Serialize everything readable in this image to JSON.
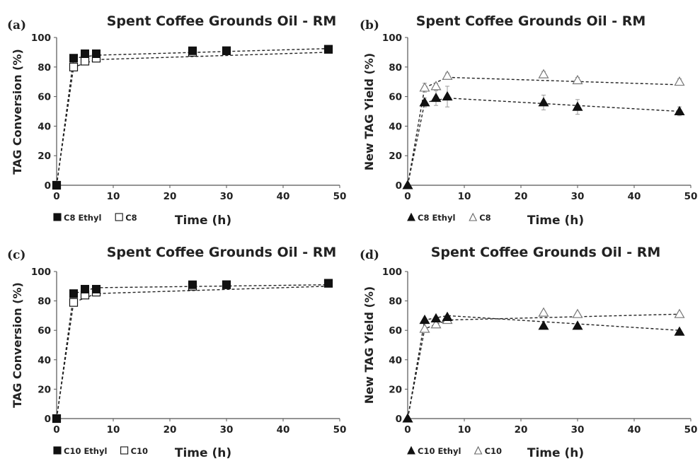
{
  "chart_data": [
    {
      "panel": "(a)",
      "type": "line",
      "title": "Spent Coffee Grounds Oil - RM",
      "xlabel": "Time (h)",
      "ylabel": "TAG Conversion (%)",
      "xlim": [
        0,
        50
      ],
      "ylim": [
        0,
        100
      ],
      "xticks": [
        "0",
        "10",
        "20",
        "30",
        "40",
        "50"
      ],
      "yticks": [
        "0",
        "20",
        "40",
        "60",
        "80",
        "100"
      ],
      "grid": false,
      "legend_position": "bottom-left",
      "series": [
        {
          "name": "C8 Ethyl",
          "marker": "square-filled",
          "x": [
            0,
            3,
            5,
            7,
            24,
            30,
            48
          ],
          "y": [
            0,
            86,
            89,
            89,
            91,
            91,
            92
          ]
        },
        {
          "name": "C8",
          "marker": "square-open",
          "x": [
            0,
            3,
            5,
            7,
            24,
            30,
            48
          ],
          "y": [
            0,
            80,
            84,
            86,
            90,
            91,
            92
          ]
        }
      ],
      "trendlines": [
        {
          "series": "C8 Ethyl",
          "points": [
            [
              0,
              0
            ],
            [
              3,
              86
            ],
            [
              7,
              88
            ],
            [
              48,
              92.5
            ]
          ]
        },
        {
          "series": "C8",
          "points": [
            [
              0,
              0
            ],
            [
              3,
              80
            ],
            [
              7,
              85
            ],
            [
              48,
              90
            ]
          ]
        }
      ]
    },
    {
      "panel": "(b)",
      "type": "line",
      "title": "Spent Coffee Grounds Oil - RM",
      "xlabel": "Time (h)",
      "ylabel": "New TAG Yield (%)",
      "xlim": [
        0,
        50
      ],
      "ylim": [
        0,
        100
      ],
      "xticks": [
        "0",
        "10",
        "20",
        "30",
        "40",
        "50"
      ],
      "yticks": [
        "0",
        "20",
        "40",
        "60",
        "80",
        "100"
      ],
      "grid": false,
      "legend_position": "bottom-left",
      "series": [
        {
          "name": "C8 Ethyl",
          "marker": "triangle-filled",
          "x": [
            0,
            3,
            5,
            7,
            24,
            30,
            48
          ],
          "y": [
            0,
            56,
            59,
            60,
            56,
            53,
            50
          ],
          "err": [
            0,
            3,
            5,
            7,
            5,
            5,
            3
          ]
        },
        {
          "name": "C8",
          "marker": "triangle-open",
          "x": [
            0,
            3,
            5,
            7,
            24,
            30,
            48
          ],
          "y": [
            0,
            66,
            67,
            74,
            75,
            71,
            70
          ],
          "err": [
            0,
            3,
            2,
            2,
            2,
            2,
            2
          ]
        }
      ],
      "trendlines": [
        {
          "series": "C8 Ethyl",
          "points": [
            [
              0,
              0
            ],
            [
              3,
              56
            ],
            [
              7,
              59
            ],
            [
              48,
              50
            ]
          ]
        },
        {
          "series": "C8",
          "points": [
            [
              0,
              0
            ],
            [
              3,
              66
            ],
            [
              7,
              73
            ],
            [
              48,
              68
            ]
          ]
        }
      ]
    },
    {
      "panel": "(c)",
      "type": "line",
      "title": "Spent Coffee Grounds Oil - RM",
      "xlabel": "Time (h)",
      "ylabel": "TAG Conversion (%)",
      "xlim": [
        0,
        50
      ],
      "ylim": [
        0,
        100
      ],
      "xticks": [
        "0",
        "10",
        "20",
        "30",
        "40",
        "50"
      ],
      "yticks": [
        "0",
        "20",
        "40",
        "60",
        "80",
        "100"
      ],
      "grid": false,
      "legend_position": "bottom-left",
      "series": [
        {
          "name": "C10 Ethyl",
          "marker": "square-filled",
          "x": [
            0,
            3,
            5,
            7,
            24,
            30,
            48
          ],
          "y": [
            0,
            85,
            88,
            88,
            91,
            91,
            92
          ]
        },
        {
          "name": "C10",
          "marker": "square-open",
          "x": [
            0,
            3,
            5,
            7,
            24,
            30,
            48
          ],
          "y": [
            0,
            79,
            84,
            86,
            90,
            91,
            92
          ]
        }
      ],
      "trendlines": [
        {
          "series": "C10 Ethyl",
          "points": [
            [
              0,
              0
            ],
            [
              3,
              85
            ],
            [
              7,
              89
            ],
            [
              48,
              91
            ]
          ]
        },
        {
          "series": "C10",
          "points": [
            [
              0,
              0
            ],
            [
              3,
              79
            ],
            [
              7,
              85
            ],
            [
              48,
              90
            ]
          ]
        }
      ]
    },
    {
      "panel": "(d)",
      "type": "line",
      "title": "Spent Coffee Grounds Oil - RM",
      "xlabel": "Time (h)",
      "ylabel": "New TAG Yield (%)",
      "xlim": [
        0,
        50
      ],
      "ylim": [
        0,
        100
      ],
      "xticks": [
        "0",
        "10",
        "20",
        "30",
        "40",
        "50"
      ],
      "yticks": [
        "0",
        "20",
        "40",
        "60",
        "80",
        "100"
      ],
      "grid": false,
      "legend_position": "bottom-left",
      "series": [
        {
          "name": "C10 Ethyl",
          "marker": "triangle-filled",
          "x": [
            0,
            3,
            5,
            7,
            24,
            30,
            48
          ],
          "y": [
            0,
            67,
            68,
            69,
            63,
            63,
            59
          ]
        },
        {
          "name": "C10",
          "marker": "triangle-open",
          "x": [
            0,
            3,
            5,
            7,
            24,
            30,
            48
          ],
          "y": [
            0,
            61,
            64,
            67,
            72,
            71,
            71
          ]
        }
      ],
      "trendlines": [
        {
          "series": "C10 Ethyl",
          "points": [
            [
              0,
              0
            ],
            [
              3,
              67
            ],
            [
              7,
              70
            ],
            [
              48,
              60
            ]
          ]
        },
        {
          "series": "C10",
          "points": [
            [
              0,
              0
            ],
            [
              3,
              61
            ],
            [
              7,
              67
            ],
            [
              48,
              71
            ]
          ]
        }
      ]
    }
  ]
}
